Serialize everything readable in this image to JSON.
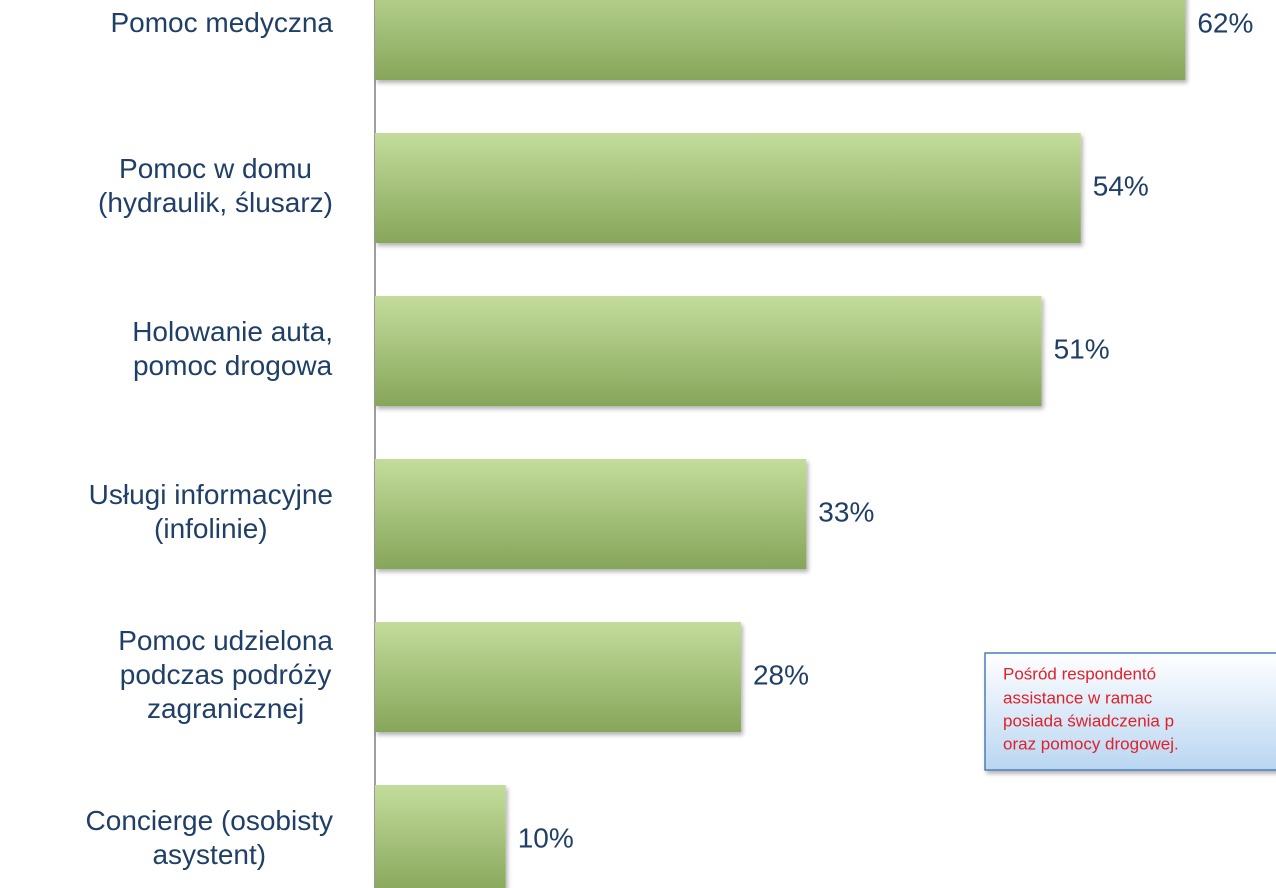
{
  "chart_data": {
    "type": "bar",
    "orientation": "horizontal",
    "categories": [
      "Pomoc medyczna",
      "Pomoc w domu\n(hydraulik, ślusarz)",
      "Holowanie auta,\npomoc drogowa",
      "Usługi informacyjne\n(infolinie)",
      "Pomoc udzielona\npodczas podróży\nzagranicznej",
      "Concierge (osobisty\nasystent)"
    ],
    "values": [
      62,
      54,
      51,
      33,
      28,
      10
    ],
    "value_labels": [
      "62%",
      "54%",
      "51%",
      "33%",
      "28%",
      "10%"
    ],
    "color": "#9fbf72",
    "annotation": [
      "Pośród respondentó",
      "assistance w ramac",
      "posiada świadczenia p",
      "oraz pomocy drogowej."
    ]
  }
}
